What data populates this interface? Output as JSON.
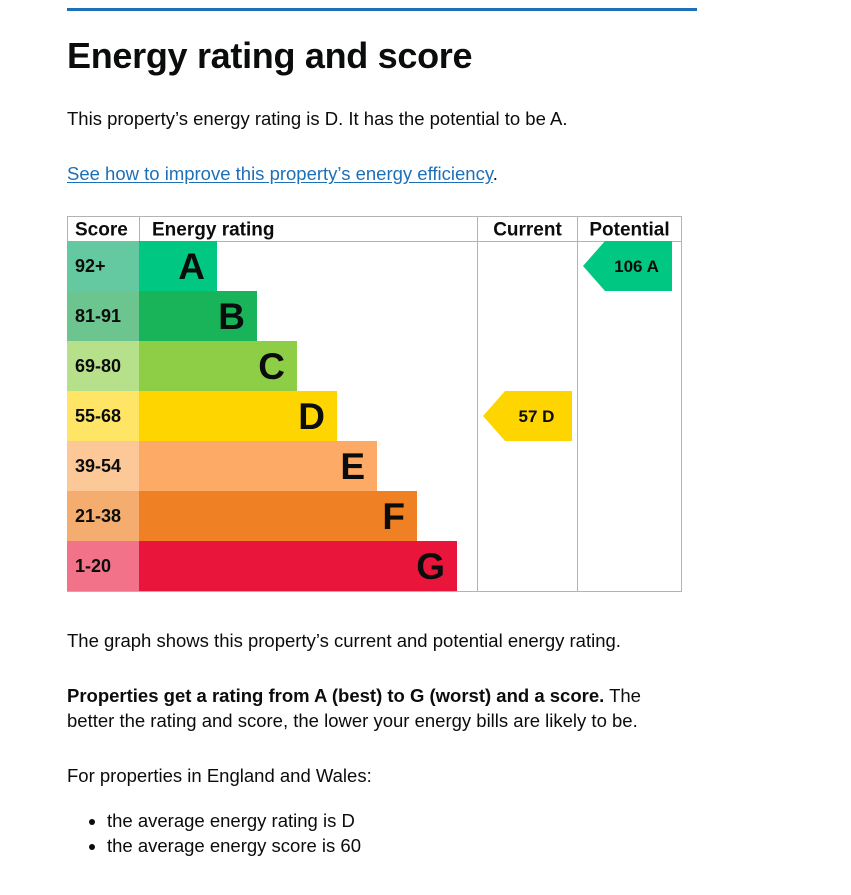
{
  "page": {
    "title": "Energy rating and score",
    "intro": "This property’s energy rating is D. It has the potential to be A.",
    "improve_link": "See how to improve this property’s energy efficiency",
    "improve_link_suffix": ".",
    "graph_note": "The graph shows this property’s current and potential energy rating.",
    "rating_bold": "Properties get a rating from A (best) to G (worst) and a score.",
    "rating_rest": " The better the rating and score, the lower your energy bills are likely to be.",
    "regional_intro": "For properties in England and Wales:",
    "bullets": [
      "the average energy rating is D",
      "the average energy score is 60"
    ]
  },
  "chart_data": {
    "type": "table",
    "headers": {
      "score": "Score",
      "rating": "Energy rating",
      "current": "Current",
      "potential": "Potential"
    },
    "bands": [
      {
        "letter": "A",
        "score": "92+",
        "color": "#00c781",
        "score_bg": "#64c9a0"
      },
      {
        "letter": "B",
        "score": "81-91",
        "color": "#19b459",
        "score_bg": "#6cc48e"
      },
      {
        "letter": "C",
        "score": "69-80",
        "color": "#8dce46",
        "score_bg": "#b6e08a"
      },
      {
        "letter": "D",
        "score": "55-68",
        "color": "#ffd500",
        "score_bg": "#ffe566"
      },
      {
        "letter": "E",
        "score": "39-54",
        "color": "#fcaa65",
        "score_bg": "#fdc898"
      },
      {
        "letter": "F",
        "score": "21-38",
        "color": "#ef8023",
        "score_bg": "#f4ac6f"
      },
      {
        "letter": "G",
        "score": "1-20",
        "color": "#e9153b",
        "score_bg": "#f2728a"
      }
    ],
    "current": {
      "score": "57",
      "letter": "D",
      "color": "#ffd500"
    },
    "potential": {
      "score": "106",
      "letter": "A",
      "color": "#00c781"
    }
  }
}
